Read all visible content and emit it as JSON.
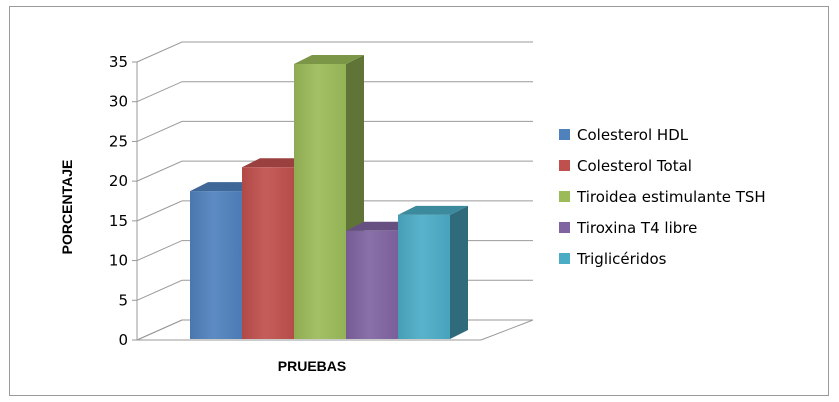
{
  "chart_data": {
    "type": "bar",
    "style": "3d-clustered-column",
    "categories": [
      "PRUEBAS"
    ],
    "series": [
      {
        "name": "Colesterol HDL",
        "values": [
          19
        ],
        "color": "#4f81bd"
      },
      {
        "name": "Colesterol Total",
        "values": [
          22
        ],
        "color": "#c0504d"
      },
      {
        "name": "Tiroidea estimulante TSH",
        "values": [
          35
        ],
        "color": "#9bbb59"
      },
      {
        "name": "Tiroxina T4  libre",
        "values": [
          14
        ],
        "color": "#8064a2"
      },
      {
        "name": "Triglicéridos",
        "values": [
          16
        ],
        "color": "#4bacc6"
      }
    ],
    "title": "",
    "xlabel": "PRUEBAS",
    "ylabel": "PORCENTAJE",
    "ylim": [
      0,
      35
    ],
    "yticks": [
      0,
      5,
      10,
      15,
      20,
      25,
      30,
      35
    ],
    "grid": true,
    "legend": "right"
  }
}
